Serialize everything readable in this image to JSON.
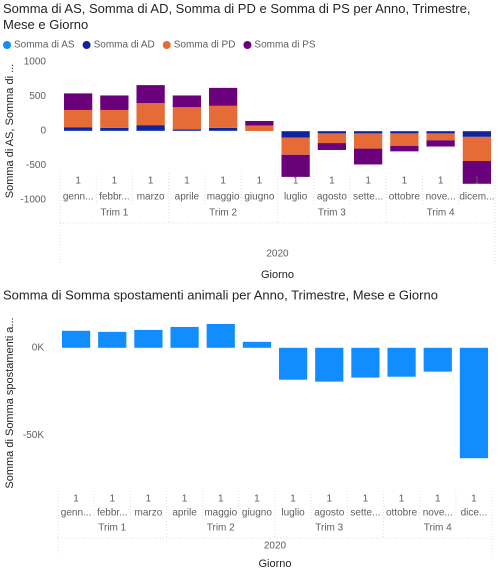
{
  "chart_data": [
    {
      "type": "bar",
      "stacked": true,
      "title": "Somma di AS, Somma di AD, Somma di PD e Somma di PS per Anno, Trimestre, Mese e Giorno",
      "y_label": "Somma di AS, Somma di ...",
      "x_label": "Giorno",
      "year": "2020",
      "quarters": [
        "Trim 1",
        "Trim 2",
        "Trim 3",
        "Trim 4"
      ],
      "days": [
        "1",
        "1",
        "1",
        "1",
        "1",
        "1",
        "1",
        "1",
        "1",
        "1",
        "1",
        "1"
      ],
      "categories": [
        "genn...",
        "febbr...",
        "marzo",
        "aprile",
        "maggio",
        "giugno",
        "luglio",
        "agosto",
        "sette...",
        "ottobre",
        "nove...",
        "dicem..."
      ],
      "series": [
        {
          "name": "Somma di AS",
          "color": "#118DFF",
          "values": [
            5,
            5,
            5,
            5,
            5,
            0,
            -5,
            -5,
            -5,
            -5,
            -5,
            -5
          ]
        },
        {
          "name": "Somma di AD",
          "color": "#12239E",
          "values": [
            50,
            40,
            80,
            20,
            40,
            0,
            -90,
            -30,
            -30,
            -30,
            -30,
            -80
          ]
        },
        {
          "name": "Somma di PD",
          "color": "#E66C37",
          "values": [
            250,
            260,
            320,
            320,
            320,
            80,
            -250,
            -140,
            -220,
            -180,
            -100,
            -350
          ]
        },
        {
          "name": "Somma di PS",
          "color": "#6B007B",
          "values": [
            240,
            210,
            260,
            170,
            260,
            65,
            -320,
            -100,
            -230,
            -80,
            -90,
            -330
          ]
        }
      ],
      "ylim": [
        -1000,
        1000
      ],
      "yticks": [
        -1000,
        -500,
        0,
        500,
        1000
      ],
      "grid": false,
      "legend": "top-left"
    },
    {
      "type": "bar",
      "title": "Somma di Somma spostamenti animali per Anno, Trimestre, Mese e Giorno",
      "y_label": "Somma di Somma spostamenti a...",
      "x_label": "Giorno",
      "year": "2020",
      "quarters": [
        "Trim 1",
        "Trim 2",
        "Trim 3",
        "Trim 4"
      ],
      "days": [
        "1",
        "1",
        "1",
        "1",
        "1",
        "1",
        "1",
        "1",
        "1",
        "1",
        "1",
        "1"
      ],
      "categories": [
        "genn...",
        "febbr...",
        "marzo",
        "aprile",
        "maggio",
        "giugno",
        "luglio",
        "agosto",
        "sette...",
        "ottobre",
        "nove...",
        "dice..."
      ],
      "color": "#118DFF",
      "values": [
        9700,
        9100,
        10200,
        11900,
        13600,
        3400,
        -18200,
        -19300,
        -17000,
        -16500,
        -13600,
        -63000
      ],
      "ylim": [
        -80000,
        17000
      ],
      "yticks": [
        {
          "value": -50000,
          "label": "-50K"
        },
        {
          "value": 0,
          "label": "0K"
        }
      ],
      "grid": false
    }
  ]
}
